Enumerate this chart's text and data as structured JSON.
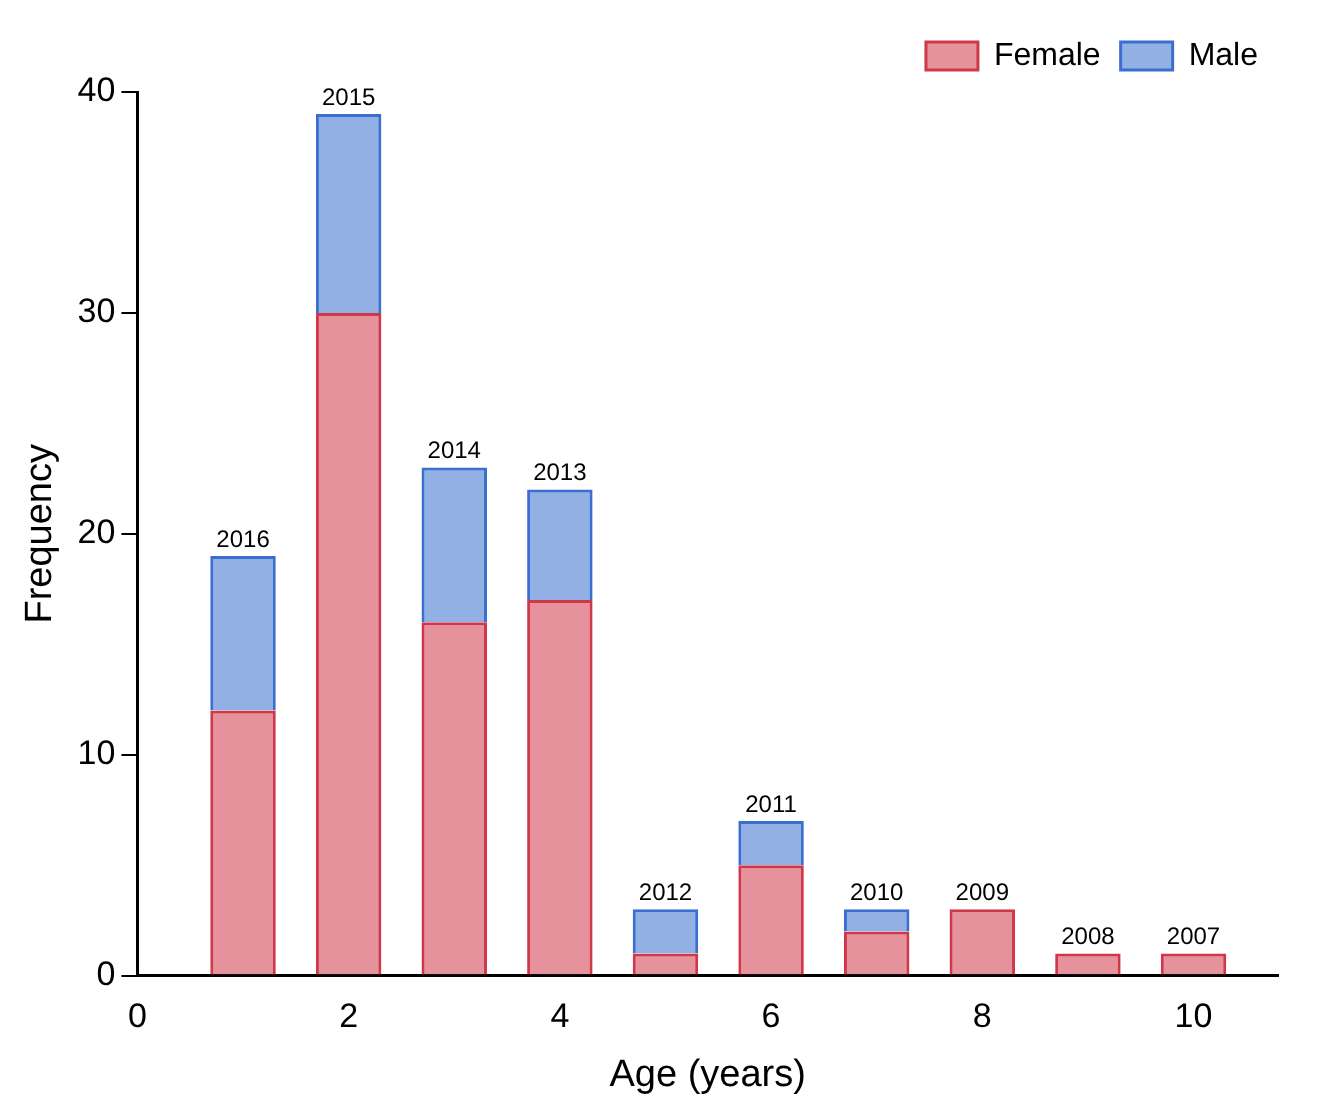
{
  "chart_data": {
    "type": "bar",
    "stacked": true,
    "xlabel": "Age (years)",
    "ylabel": "Frequency",
    "x": [
      1,
      2,
      3,
      4,
      5,
      6,
      7,
      8,
      9,
      10
    ],
    "series": [
      {
        "name": "Female",
        "color": "#d0384a",
        "values": [
          12,
          30,
          16,
          17,
          1,
          5,
          2,
          3,
          1,
          1
        ]
      },
      {
        "name": "Male",
        "color": "#3a6fd0",
        "values": [
          7,
          9,
          7,
          5,
          2,
          2,
          1,
          0,
          0,
          0
        ]
      }
    ],
    "xlim": [
      0,
      10.8
    ],
    "xticks": [
      0,
      2,
      4,
      6,
      8,
      10
    ],
    "ylim": [
      0,
      40
    ],
    "yticks": [
      0,
      10,
      20,
      30,
      40
    ],
    "grid": false,
    "legend": "top right",
    "annotations": [
      {
        "text": "2016",
        "x": 1,
        "y": 19
      },
      {
        "text": "2015",
        "x": 2,
        "y": 39
      },
      {
        "text": "2014",
        "x": 3,
        "y": 23
      },
      {
        "text": "2013",
        "x": 4,
        "y": 22
      },
      {
        "text": "2012",
        "x": 5,
        "y": 3
      },
      {
        "text": "2011",
        "x": 6,
        "y": 7
      },
      {
        "text": "2010",
        "x": 7,
        "y": 3
      },
      {
        "text": "2009",
        "x": 8,
        "y": 3
      },
      {
        "text": "2008",
        "x": 9,
        "y": 1
      },
      {
        "text": "2007",
        "x": 10,
        "y": 1
      }
    ]
  }
}
